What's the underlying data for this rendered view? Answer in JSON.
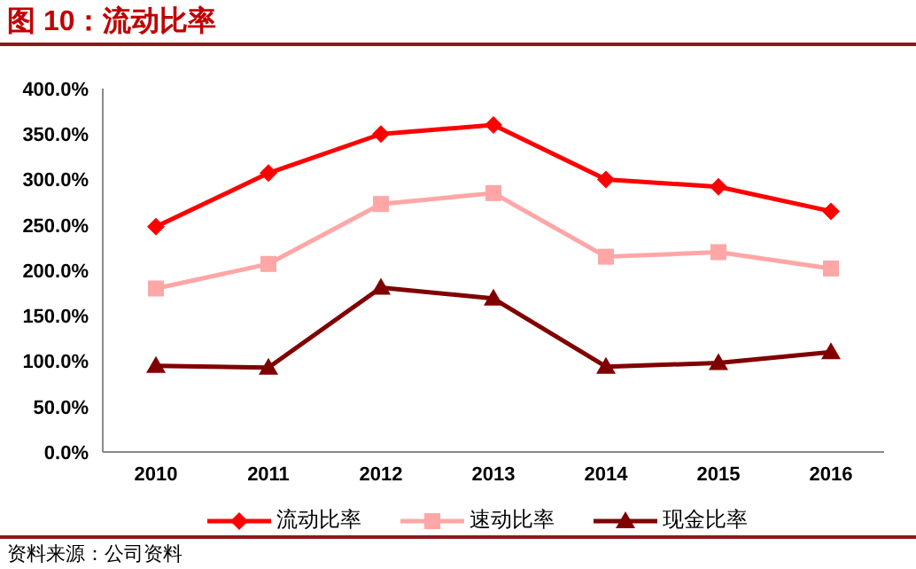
{
  "chart_data": {
    "type": "line",
    "title": "图 10：流动比率",
    "categories": [
      "2010",
      "2011",
      "2012",
      "2013",
      "2014",
      "2015",
      "2016"
    ],
    "series": [
      {
        "name": "流动比率",
        "color": "#ff0000",
        "marker": "diamond",
        "values": [
          248,
          307,
          350,
          360,
          300,
          292,
          265
        ]
      },
      {
        "name": "速动比率",
        "color": "#ffa6a6",
        "marker": "square",
        "values": [
          180,
          207,
          273,
          285,
          215,
          220,
          202
        ]
      },
      {
        "name": "现金比率",
        "color": "#800000",
        "marker": "triangle",
        "values": [
          95,
          93,
          181,
          169,
          94,
          98,
          110
        ]
      }
    ],
    "ylim": [
      0,
      400
    ],
    "yticks": [
      {
        "value": 0,
        "label": "0.0%"
      },
      {
        "value": 50,
        "label": "50.0%"
      },
      {
        "value": 100,
        "label": "100.0%"
      },
      {
        "value": 150,
        "label": "150.0%"
      },
      {
        "value": 200,
        "label": "200.0%"
      },
      {
        "value": 250,
        "label": "250.0%"
      },
      {
        "value": 300,
        "label": "300.0%"
      },
      {
        "value": 350,
        "label": "350.0%"
      },
      {
        "value": 400,
        "label": "400.0%"
      }
    ],
    "grid": false,
    "legend": "bottom",
    "annotations": [
      "资料来源：公司资料"
    ]
  }
}
